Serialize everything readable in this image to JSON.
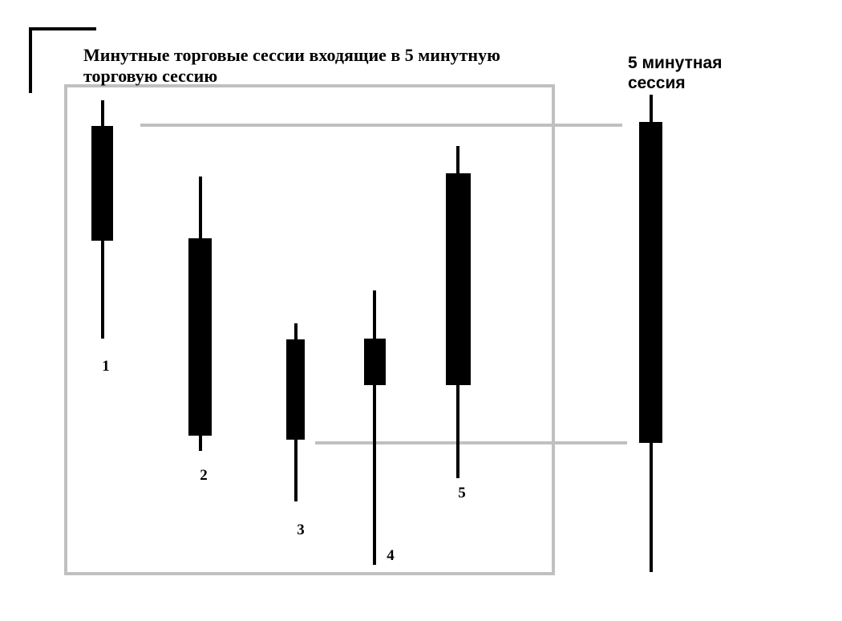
{
  "group_title_line1": "Минутные торговые сессии входящие в 5 минутную",
  "group_title_line2": "торговую сессию",
  "aggregate_title_line1": "5 минутная",
  "aggregate_title_line2": "сессия",
  "colors": {
    "candle": "#000000",
    "frame": "#c0c0c0",
    "connector": "#c0c0c0",
    "corner": "#000000"
  },
  "candles": [
    {
      "label": "1"
    },
    {
      "label": "2"
    },
    {
      "label": "3"
    },
    {
      "label": "4"
    },
    {
      "label": "5"
    }
  ]
}
